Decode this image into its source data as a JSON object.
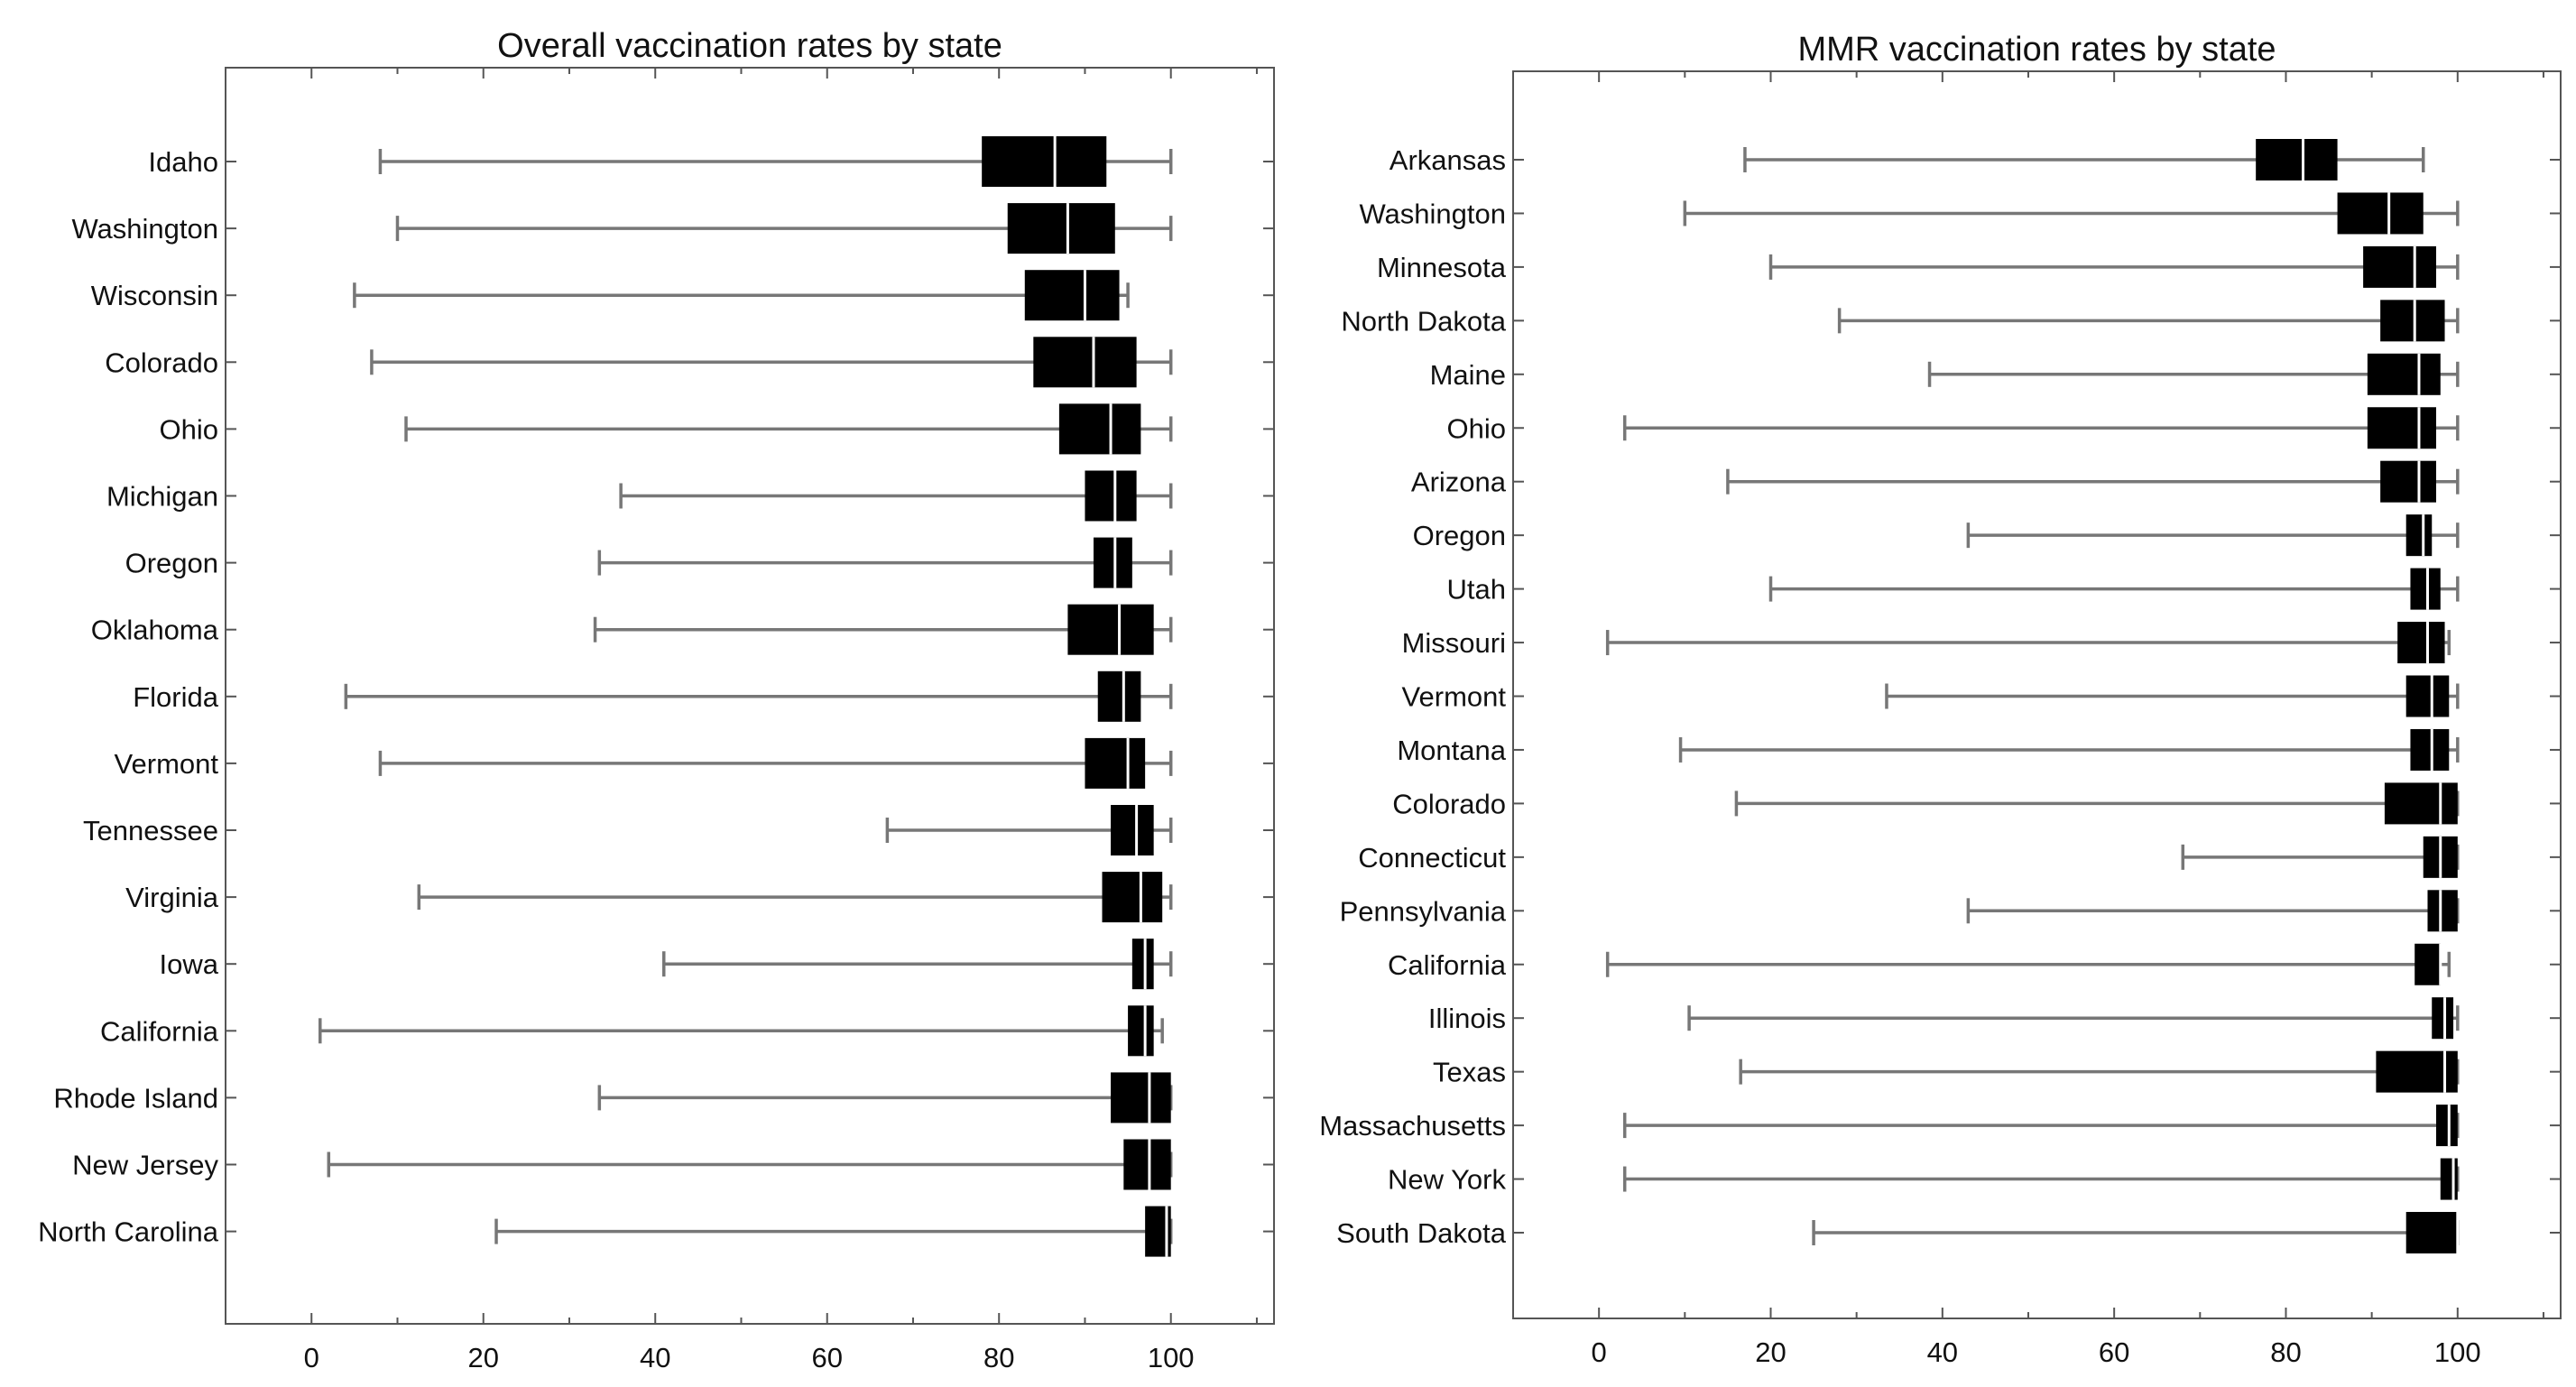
{
  "chart_data": [
    {
      "type": "boxplot",
      "orientation": "horizontal",
      "title": "Overall vaccination rates by state",
      "xlabel": "",
      "ylabel": "",
      "xlim": [
        -10,
        112
      ],
      "x_ticks": [
        "0",
        "20",
        "40",
        "60",
        "80",
        "100"
      ],
      "grid": false,
      "categories": [
        "Idaho",
        "Washington",
        "Wisconsin",
        "Colorado",
        "Ohio",
        "Michigan",
        "Oregon",
        "Oklahoma",
        "Florida",
        "Vermont",
        "Tennessee",
        "Virginia",
        "Iowa",
        "California",
        "Rhode Island",
        "New Jersey",
        "North Carolina"
      ],
      "boxes": [
        {
          "min": 8,
          "q1": 78,
          "median": 86.5,
          "q3": 92.5,
          "max": 100
        },
        {
          "min": 10,
          "q1": 81,
          "median": 88,
          "q3": 93.5,
          "max": 100
        },
        {
          "min": 5,
          "q1": 83,
          "median": 90,
          "q3": 94,
          "max": 95
        },
        {
          "min": 7,
          "q1": 84,
          "median": 91,
          "q3": 96,
          "max": 100
        },
        {
          "min": 11,
          "q1": 87,
          "median": 93,
          "q3": 96.5,
          "max": 100
        },
        {
          "min": 36,
          "q1": 90,
          "median": 93.5,
          "q3": 96,
          "max": 100
        },
        {
          "min": 33.5,
          "q1": 91,
          "median": 93.5,
          "q3": 95.5,
          "max": 100
        },
        {
          "min": 33,
          "q1": 88,
          "median": 94,
          "q3": 98,
          "max": 100
        },
        {
          "min": 4,
          "q1": 91.5,
          "median": 94.5,
          "q3": 96.5,
          "max": 100
        },
        {
          "min": 8,
          "q1": 90,
          "median": 95,
          "q3": 97,
          "max": 100
        },
        {
          "min": 67,
          "q1": 93,
          "median": 96,
          "q3": 98,
          "max": 100
        },
        {
          "min": 12.5,
          "q1": 92,
          "median": 96.5,
          "q3": 99,
          "max": 100
        },
        {
          "min": 41,
          "q1": 95.5,
          "median": 97,
          "q3": 98,
          "max": 100
        },
        {
          "min": 1,
          "q1": 95,
          "median": 97,
          "q3": 98,
          "max": 99
        },
        {
          "min": 33.5,
          "q1": 93,
          "median": 97.5,
          "q3": 100,
          "max": 100
        },
        {
          "min": 2,
          "q1": 94.5,
          "median": 97.5,
          "q3": 100,
          "max": 100
        },
        {
          "min": 21.5,
          "q1": 97,
          "median": 99.5,
          "q3": 100,
          "max": 100
        }
      ]
    },
    {
      "type": "boxplot",
      "orientation": "horizontal",
      "title": "MMR vaccination rates by state",
      "xlabel": "",
      "ylabel": "",
      "xlim": [
        -10,
        112
      ],
      "x_ticks": [
        "0",
        "20",
        "40",
        "60",
        "80",
        "100"
      ],
      "grid": false,
      "categories": [
        "Arkansas",
        "Washington",
        "Minnesota",
        "North Dakota",
        "Maine",
        "Ohio",
        "Arizona",
        "Oregon",
        "Utah",
        "Missouri",
        "Vermont",
        "Montana",
        "Colorado",
        "Connecticut",
        "Pennsylvania",
        "California",
        "Illinois",
        "Texas",
        "Massachusetts",
        "New York",
        "South Dakota"
      ],
      "boxes": [
        {
          "min": 17,
          "q1": 76.5,
          "median": 82,
          "q3": 86,
          "max": 96
        },
        {
          "min": 10,
          "q1": 86,
          "median": 92,
          "q3": 96,
          "max": 100
        },
        {
          "min": 20,
          "q1": 89,
          "median": 95,
          "q3": 97.5,
          "max": 100
        },
        {
          "min": 28,
          "q1": 91,
          "median": 95,
          "q3": 98.5,
          "max": 100
        },
        {
          "min": 38.5,
          "q1": 89.5,
          "median": 95.5,
          "q3": 98,
          "max": 100
        },
        {
          "min": 3,
          "q1": 89.5,
          "median": 95.5,
          "q3": 97.5,
          "max": 100
        },
        {
          "min": 15,
          "q1": 91,
          "median": 95.5,
          "q3": 97.5,
          "max": 100
        },
        {
          "min": 43,
          "q1": 94,
          "median": 96,
          "q3": 97,
          "max": 100
        },
        {
          "min": 20,
          "q1": 94.5,
          "median": 96.5,
          "q3": 98,
          "max": 100
        },
        {
          "min": 1,
          "q1": 93,
          "median": 96.5,
          "q3": 98.5,
          "max": 99
        },
        {
          "min": 33.5,
          "q1": 94,
          "median": 97,
          "q3": 99,
          "max": 100
        },
        {
          "min": 9.5,
          "q1": 94.5,
          "median": 97,
          "q3": 99,
          "max": 100
        },
        {
          "min": 16,
          "q1": 91.5,
          "median": 98,
          "q3": 100,
          "max": 100
        },
        {
          "min": 68,
          "q1": 96,
          "median": 98,
          "q3": 100,
          "max": 100
        },
        {
          "min": 43,
          "q1": 96.5,
          "median": 98,
          "q3": 100,
          "max": 100
        },
        {
          "min": 1,
          "q1": 95,
          "median": 98,
          "q3": 98,
          "max": 99
        },
        {
          "min": 10.5,
          "q1": 97,
          "median": 98.5,
          "q3": 99.5,
          "max": 100
        },
        {
          "min": 16.5,
          "q1": 90.5,
          "median": 98.5,
          "q3": 100,
          "max": 100
        },
        {
          "min": 3,
          "q1": 97.5,
          "median": 99,
          "q3": 100,
          "max": 100
        },
        {
          "min": 3,
          "q1": 98,
          "median": 99.5,
          "q3": 100,
          "max": 100
        },
        {
          "min": 25,
          "q1": 94,
          "median": 100,
          "q3": 100,
          "max": 100
        }
      ]
    }
  ]
}
